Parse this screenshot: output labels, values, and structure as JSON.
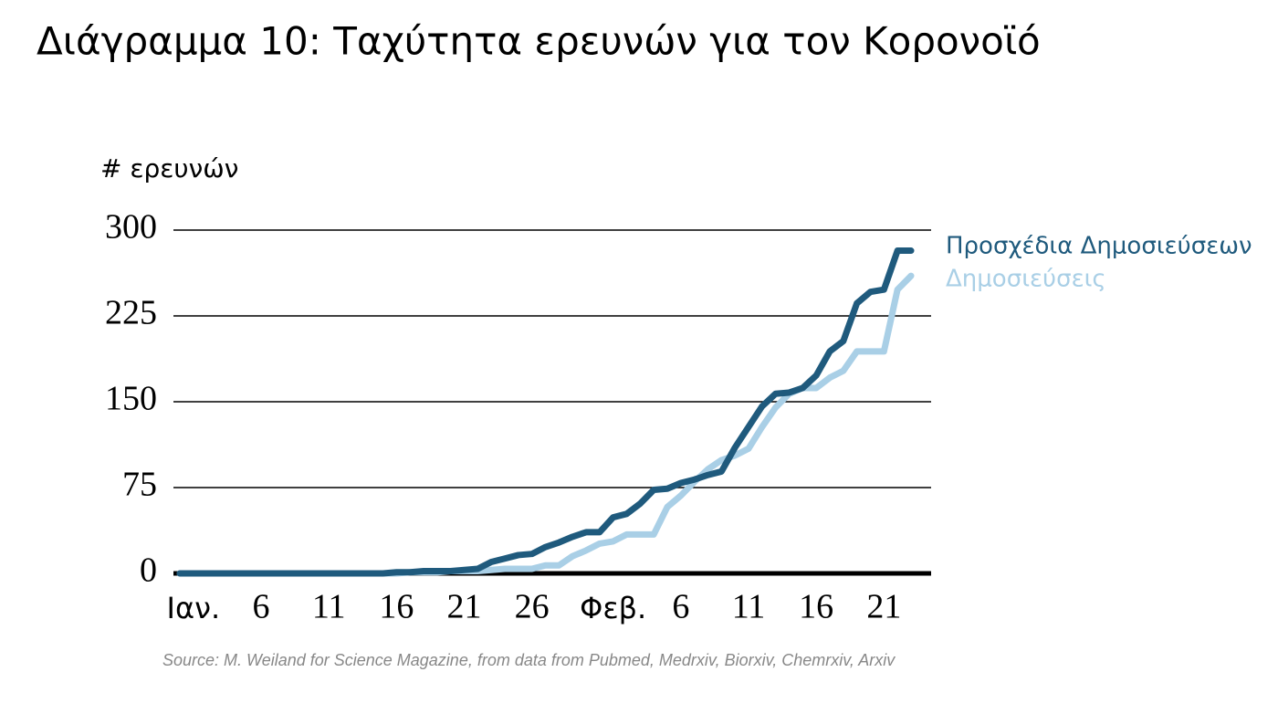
{
  "chart_data": {
    "type": "line",
    "title": "Διάγραμμα 10: Ταχύτητα ερευνών για τον Κορονοϊό",
    "y_label": "# ερευνών",
    "source": "Source: M. Weiland for Science Magazine, from data from Pubmed, Medrxiv, Biorxiv, Chemrxiv, Arxiv",
    "categories": [
      null,
      "Ιαν.",
      null,
      null,
      null,
      null,
      "6",
      null,
      null,
      null,
      null,
      "11",
      null,
      null,
      null,
      null,
      "16",
      null,
      null,
      null,
      null,
      "21",
      null,
      null,
      null,
      null,
      "26",
      null,
      null,
      null,
      null,
      null,
      "Φεβ.",
      null,
      null,
      null,
      null,
      "6",
      null,
      null,
      null,
      null,
      "11",
      null,
      null,
      null,
      null,
      "16",
      null,
      null,
      null,
      null,
      "21",
      null,
      null
    ],
    "series": [
      {
        "name": "Προσχέδια Δημοσιεύσεων",
        "color": "#1f5a7d",
        "values": [
          0,
          0,
          0,
          0,
          0,
          0,
          0,
          0,
          0,
          0,
          0,
          0,
          0,
          0,
          0,
          0,
          1,
          1,
          2,
          2,
          2,
          3,
          4,
          10,
          13,
          16,
          17,
          23,
          27,
          32,
          36,
          36,
          49,
          52,
          61,
          73,
          74,
          79,
          82,
          86,
          89,
          110,
          128,
          146,
          157,
          158,
          162,
          173,
          194,
          203,
          236,
          246,
          248,
          282,
          282
        ]
      },
      {
        "name": "Δημοσιεύσεις",
        "color": "#a9cfe6",
        "values": [
          0,
          0,
          0,
          0,
          0,
          0,
          0,
          0,
          0,
          0,
          0,
          0,
          0,
          0,
          0,
          0,
          0,
          1,
          1,
          1,
          2,
          2,
          2,
          3,
          4,
          4,
          4,
          7,
          7,
          15,
          20,
          26,
          28,
          34,
          34,
          34,
          58,
          68,
          80,
          91,
          99,
          103,
          109,
          128,
          145,
          157,
          162,
          162,
          171,
          177,
          194,
          194,
          194,
          248,
          260
        ]
      }
    ],
    "ylim": [
      0,
      300
    ],
    "yticks": [
      0,
      75,
      150,
      225,
      300
    ],
    "grid": true
  }
}
